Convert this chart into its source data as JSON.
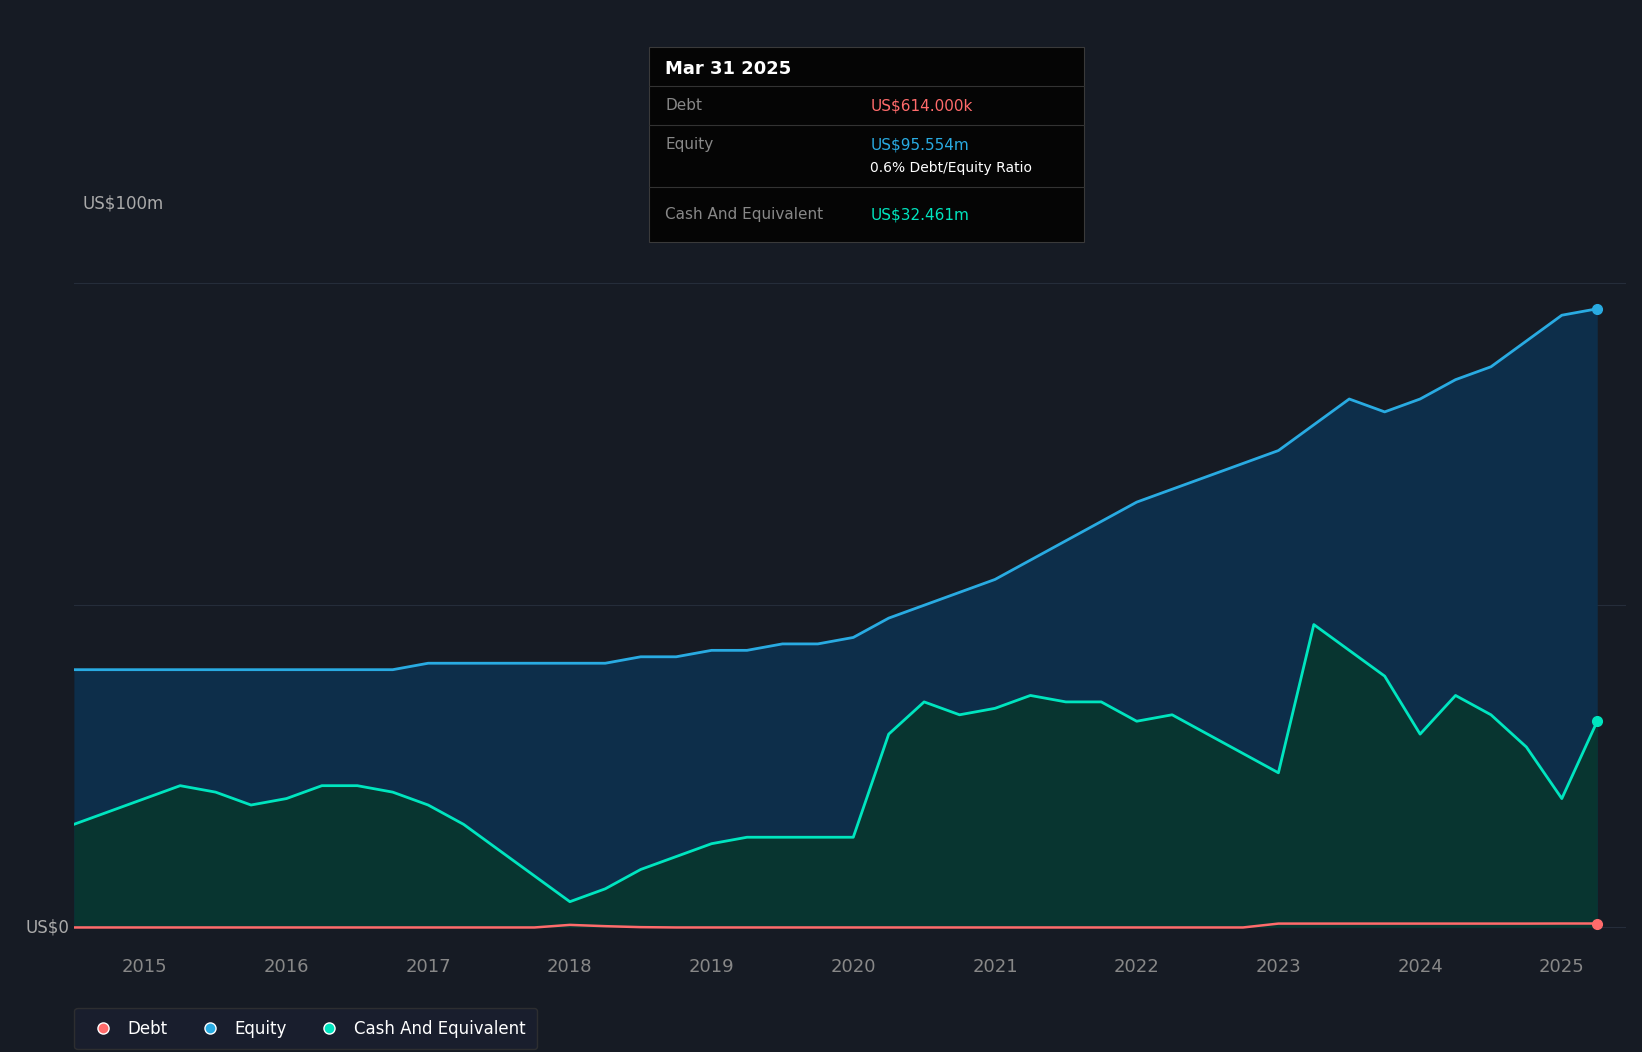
{
  "bg_color": "#161b24",
  "plot_bg_color": "#161b24",
  "equity_color": "#29ABE2",
  "equity_fill_color": "#0D2E4A",
  "cash_color": "#00E5BF",
  "cash_fill_color": "#083530",
  "debt_color": "#FF6B6B",
  "grid_color": "#252d3a",
  "tooltip_bg": "#050505",
  "tooltip_title": "Mar 31 2025",
  "tooltip_debt_label": "Debt",
  "tooltip_debt_value": "US$614.000k",
  "tooltip_equity_label": "Equity",
  "tooltip_equity_value": "US$95.554m",
  "tooltip_ratio": "0.6% Debt/Equity Ratio",
  "tooltip_cash_label": "Cash And Equivalent",
  "tooltip_cash_value": "US$32.461m",
  "legend_labels": [
    "Debt",
    "Equity",
    "Cash And Equivalent"
  ],
  "ylabel_top": "US$100m",
  "ylabel_bottom": "US$0",
  "x_ticks": [
    2015,
    2016,
    2017,
    2018,
    2019,
    2020,
    2021,
    2022,
    2023,
    2024,
    2025
  ],
  "dates": [
    2014.5,
    2015.0,
    2015.25,
    2015.5,
    2015.75,
    2016.0,
    2016.25,
    2016.5,
    2016.75,
    2017.0,
    2017.25,
    2017.5,
    2017.75,
    2018.0,
    2018.25,
    2018.5,
    2018.75,
    2019.0,
    2019.25,
    2019.5,
    2019.75,
    2020.0,
    2020.25,
    2020.5,
    2020.75,
    2021.0,
    2021.25,
    2021.5,
    2021.75,
    2022.0,
    2022.25,
    2022.5,
    2022.75,
    2023.0,
    2023.25,
    2023.5,
    2023.75,
    2024.0,
    2024.25,
    2024.5,
    2024.75,
    2025.0,
    2025.25
  ],
  "equity": [
    40,
    40,
    40,
    40,
    40,
    40,
    40,
    40,
    40,
    41,
    41,
    41,
    41,
    41,
    41,
    42,
    42,
    43,
    43,
    44,
    44,
    45,
    48,
    50,
    52,
    54,
    57,
    60,
    63,
    66,
    68,
    70,
    72,
    74,
    78,
    82,
    80,
    82,
    85,
    87,
    91,
    95,
    96
  ],
  "cash": [
    16,
    20,
    22,
    21,
    19,
    20,
    22,
    22,
    21,
    19,
    16,
    12,
    8,
    4,
    6,
    9,
    11,
    13,
    14,
    14,
    14,
    14,
    30,
    35,
    33,
    34,
    36,
    35,
    35,
    32,
    33,
    30,
    27,
    24,
    47,
    43,
    39,
    30,
    36,
    33,
    28,
    20,
    32
  ],
  "debt": [
    0,
    0,
    0,
    0,
    0,
    0,
    0,
    0,
    0,
    0,
    0,
    0,
    0,
    0.4,
    0.2,
    0.05,
    0,
    0,
    0,
    0,
    0,
    0,
    0,
    0,
    0,
    0,
    0,
    0,
    0,
    0,
    0,
    0,
    0,
    0.6,
    0.6,
    0.6,
    0.6,
    0.6,
    0.6,
    0.6,
    0.6,
    0.614,
    0.614
  ],
  "xlim": [
    2014.5,
    2025.45
  ],
  "ylim": [
    -3,
    108
  ]
}
